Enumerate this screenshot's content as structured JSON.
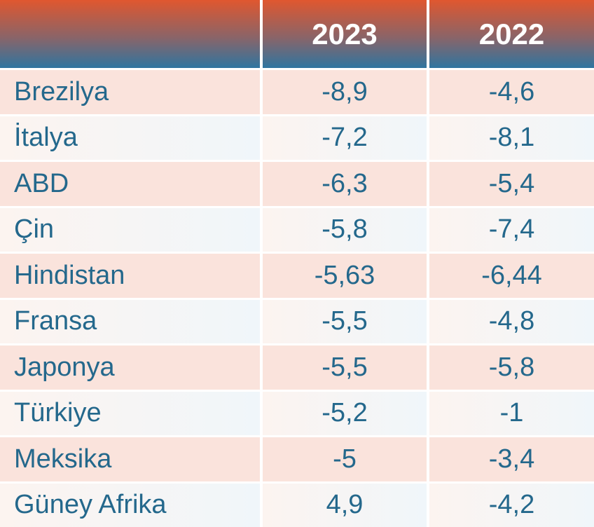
{
  "chart_data": {
    "type": "table",
    "title": "",
    "columns": [
      "",
      "2023",
      "2022"
    ],
    "rows": [
      [
        "Brezilya",
        "-8,9",
        "-4,6"
      ],
      [
        "İtalya",
        "-7,2",
        "-8,1"
      ],
      [
        "ABD",
        "-6,3",
        "-5,4"
      ],
      [
        "Çin",
        "-5,8",
        "-7,4"
      ],
      [
        "Hindistan",
        "-5,63",
        "-6,44"
      ],
      [
        "Fransa",
        "-5,5",
        "-4,8"
      ],
      [
        "Japonya",
        "-5,5",
        "-5,8"
      ],
      [
        "Türkiye",
        "-5,2",
        "-1"
      ],
      [
        "Meksika",
        "-5",
        "-3,4"
      ],
      [
        "Güney Afrika",
        "4,9",
        "-4,2"
      ]
    ],
    "layout": {
      "legend": "none",
      "grid": "off",
      "row_striping": [
        "pink",
        "light"
      ],
      "value_decimal_separator": "comma"
    },
    "colors": {
      "header_gradient_top": "#E0572F",
      "header_gradient_bottom": "#2F75A0",
      "header_text": "#FFFFFF",
      "row_pink": "#FAE3DC",
      "row_light_left": "#FCF4F0",
      "row_light_right": "#F0F6FA",
      "cell_text": "#24688C",
      "divider": "#FFFFFF"
    }
  }
}
